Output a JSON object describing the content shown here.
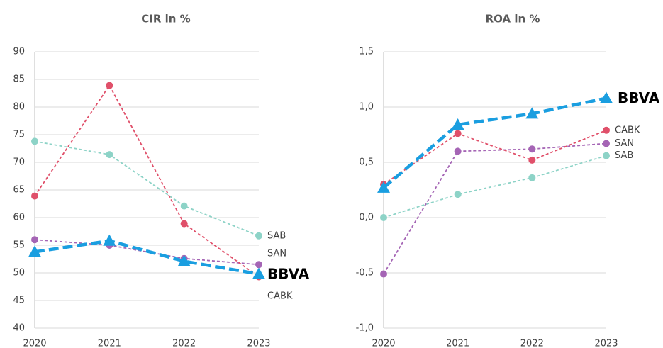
{
  "chart_data": [
    {
      "type": "line",
      "title": "CIR in %",
      "categories": [
        "2020",
        "2021",
        "2022",
        "2023"
      ],
      "ylim": [
        40,
        90
      ],
      "yticks": [
        40,
        45,
        50,
        55,
        60,
        65,
        70,
        75,
        80,
        85,
        90
      ],
      "grid": true,
      "series": [
        {
          "name": "SAB",
          "color": "#8dd3c7",
          "marker": "circle",
          "values": [
            73.8,
            71.4,
            62.1,
            56.7
          ]
        },
        {
          "name": "SAN",
          "color": "#a565b5",
          "marker": "circle",
          "values": [
            56.0,
            55.0,
            52.6,
            51.5
          ]
        },
        {
          "name": "CABK",
          "color": "#e0506a",
          "marker": "circle",
          "values": [
            63.9,
            83.9,
            58.9,
            49.3
          ]
        },
        {
          "name": "BBVA",
          "color": "#1a9ee0",
          "marker": "triangle",
          "values": [
            53.8,
            55.8,
            52.1,
            49.8
          ]
        }
      ]
    },
    {
      "type": "line",
      "title": "ROA in %",
      "categories": [
        "2020",
        "2021",
        "2022",
        "2023"
      ],
      "ylim": [
        -1.0,
        1.5
      ],
      "yticks": [
        {
          "value": -1.0,
          "label": "-1,0"
        },
        {
          "value": -0.5,
          "label": "-0,5"
        },
        {
          "value": 0,
          "label": "0,0"
        },
        {
          "value": 0.5,
          "label": "0,5"
        },
        {
          "value": 1.0,
          "label": "1,0"
        },
        {
          "value": 1.5,
          "label": "1,5"
        }
      ],
      "grid": true,
      "series": [
        {
          "name": "SAB",
          "color": "#8dd3c7",
          "marker": "circle",
          "values": [
            0.0,
            0.21,
            0.36,
            0.56
          ]
        },
        {
          "name": "SAN",
          "color": "#a565b5",
          "marker": "circle",
          "values": [
            -0.51,
            0.6,
            0.62,
            0.67
          ]
        },
        {
          "name": "CABK",
          "color": "#e0506a",
          "marker": "circle",
          "values": [
            0.3,
            0.76,
            0.52,
            0.79
          ]
        },
        {
          "name": "BBVA",
          "color": "#1a9ee0",
          "marker": "triangle",
          "values": [
            0.27,
            0.84,
            0.94,
            1.08
          ]
        }
      ]
    }
  ]
}
